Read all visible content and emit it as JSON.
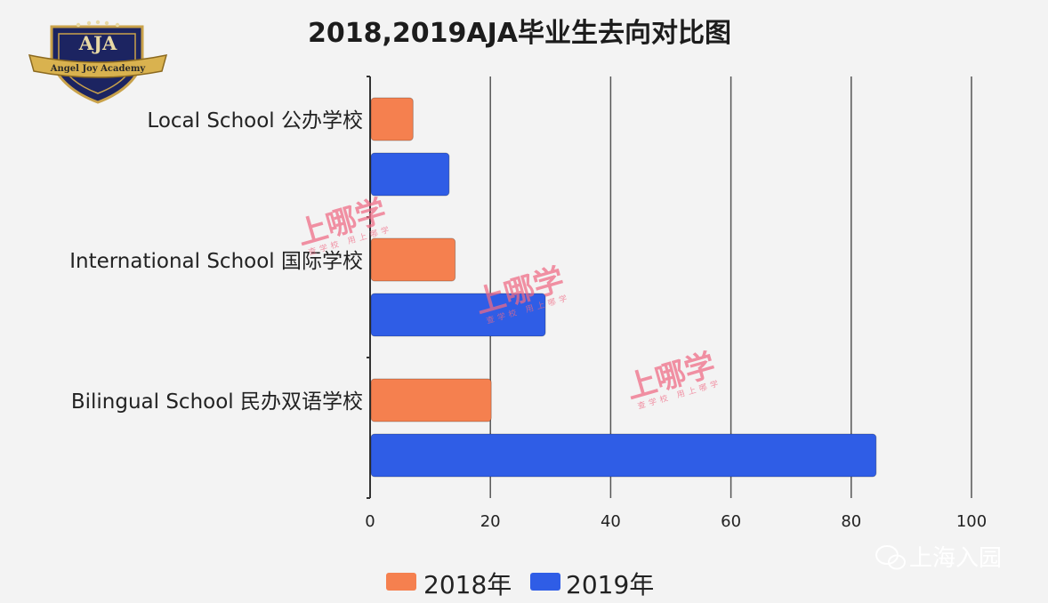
{
  "logo": {
    "letters": "AJA",
    "name": "Angel Joy Academy"
  },
  "chart_data": {
    "type": "bar",
    "orientation": "horizontal",
    "title": "2018,2019AJA毕业生去向对比图",
    "categories": [
      "Local School 公办学校",
      "International School 国际学校",
      "Bilingual School 民办双语学校"
    ],
    "series": [
      {
        "name": "2018年",
        "color": "#f5804f",
        "values": [
          7,
          14,
          20
        ]
      },
      {
        "name": "2019年",
        "color": "#2f5de6",
        "values": [
          13,
          29,
          84
        ]
      }
    ],
    "xlim": [
      0,
      100
    ],
    "ticks": [
      0,
      20,
      40,
      60,
      80,
      100
    ],
    "grid": true,
    "legend": "bottom"
  },
  "watermark": {
    "text": "上哪学",
    "subtitle": "查学校 用上哪学"
  },
  "brand": {
    "icon": "wechat-icon",
    "text": "上海入园"
  }
}
